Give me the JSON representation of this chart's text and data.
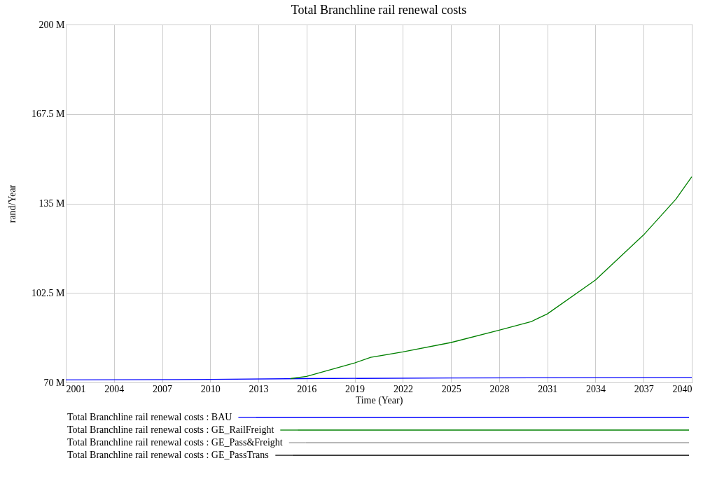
{
  "chart_data": {
    "type": "line",
    "title": "Total Branchline rail renewal costs",
    "xlabel": "Time (Year)",
    "ylabel": "rand/Year",
    "x": [
      2001,
      2010,
      2016,
      2025,
      2031,
      2040
    ],
    "series": [
      {
        "name": "Total Branchline rail renewal costs : BAU",
        "color": "#0000ff",
        "values": [
          70.9,
          71.1,
          71.4,
          71.6,
          71.7,
          71.8
        ]
      },
      {
        "name": "Total Branchline rail renewal costs : GE_RailFreight",
        "color": "#008000",
        "x": [
          2015,
          2016,
          2019,
          2020,
          2022,
          2025,
          2028,
          2030,
          2031,
          2034,
          2037,
          2039,
          2040
        ],
        "values": [
          71.4,
          72.2,
          77.1,
          79.1,
          81.1,
          84.5,
          89.0,
          92.1,
          94.9,
          107.2,
          123.6,
          136.5,
          144.7
        ]
      },
      {
        "name": "Total Branchline rail renewal costs : GE_Pass&Freight",
        "color": "#a0a0a0",
        "values": [
          null,
          null,
          null,
          null,
          null,
          null
        ]
      },
      {
        "name": "Total Branchline rail renewal costs : GE_PassTrans",
        "color": "#000000",
        "values": [
          null,
          null,
          null,
          null,
          null,
          null
        ]
      }
    ],
    "xlim": [
      2001,
      2040
    ],
    "xticks": [
      2001,
      2004,
      2007,
      2010,
      2013,
      2016,
      2019,
      2022,
      2025,
      2028,
      2031,
      2034,
      2037,
      2040
    ],
    "ylim": [
      70,
      200
    ],
    "yticks": [
      {
        "value": 70,
        "label": "70 M"
      },
      {
        "value": 102.5,
        "label": "102.5 M"
      },
      {
        "value": 135,
        "label": "135 M"
      },
      {
        "value": 167.5,
        "label": "167.5 M"
      },
      {
        "value": 200,
        "label": "200 M"
      }
    ],
    "grid": true,
    "legend": "bottom",
    "marker": "none",
    "line_style": "solid"
  }
}
